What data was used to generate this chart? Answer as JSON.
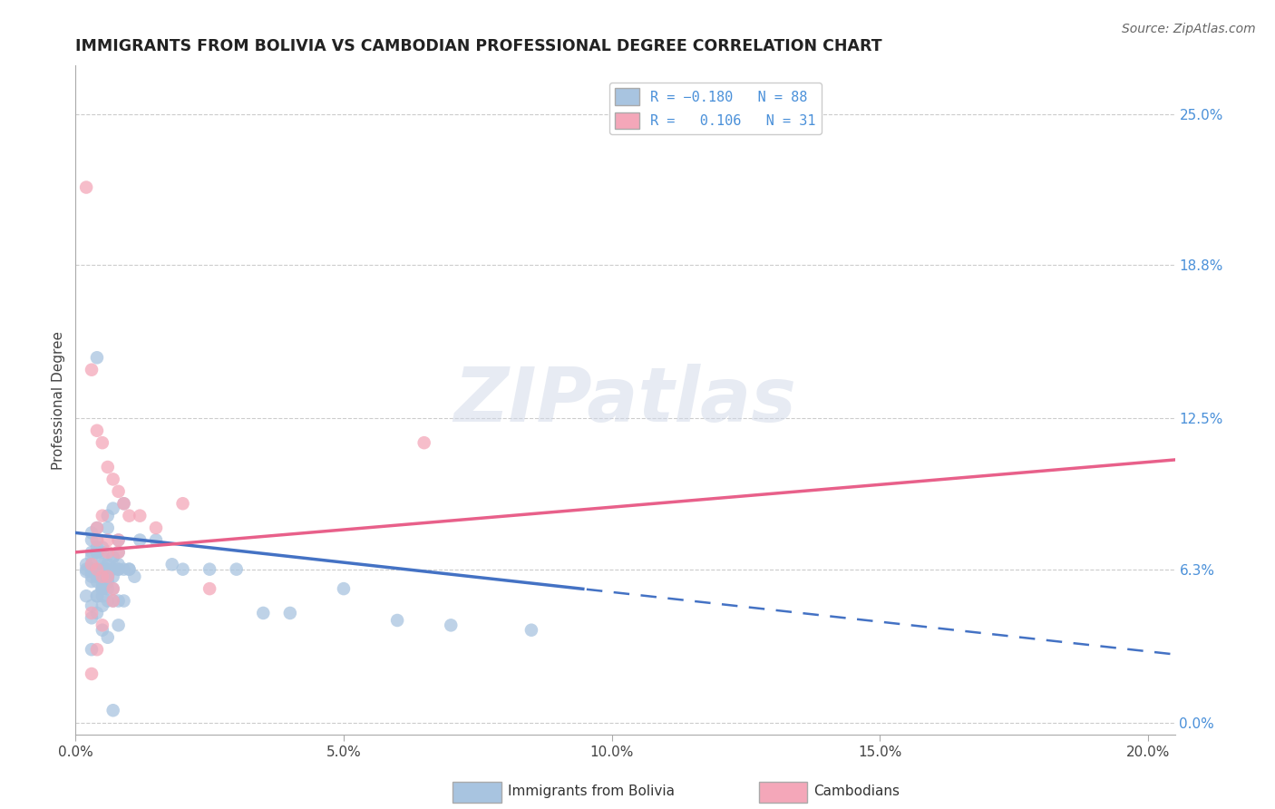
{
  "title": "IMMIGRANTS FROM BOLIVIA VS CAMBODIAN PROFESSIONAL DEGREE CORRELATION CHART",
  "source": "Source: ZipAtlas.com",
  "xlabel_ticks": [
    "0.0%",
    "5.0%",
    "10.0%",
    "15.0%",
    "20.0%"
  ],
  "xlabel_tick_vals": [
    0.0,
    5.0,
    10.0,
    15.0,
    20.0
  ],
  "ylabel": "Professional Degree",
  "ylabel_ticks": [
    "0.0%",
    "6.3%",
    "12.5%",
    "18.8%",
    "25.0%"
  ],
  "ylabel_tick_vals": [
    0.0,
    6.3,
    12.5,
    18.8,
    25.0
  ],
  "xmin": 0.0,
  "xmax": 20.5,
  "ymin": -0.5,
  "ymax": 27.0,
  "bolivia_color": "#a8c4e0",
  "cambodia_color": "#f4a7b9",
  "bolivia_R": -0.18,
  "bolivia_N": 88,
  "cambodia_R": 0.106,
  "cambodia_N": 31,
  "watermark": "ZIPatlas",
  "grid_color": "#cccccc",
  "axis_label_color": "#4a90d9",
  "bolivia_line_start_y": 7.8,
  "bolivia_line_end_y": 2.8,
  "bolivia_line_solid_end_x": 9.5,
  "cambodia_line_start_y": 7.0,
  "cambodia_line_end_y": 10.8,
  "bolivia_scatter_x": [
    0.3,
    0.4,
    0.5,
    0.6,
    0.7,
    0.8,
    0.9,
    1.0,
    0.2,
    0.4,
    1.1,
    0.5,
    0.6,
    0.3,
    0.8,
    0.4,
    0.6,
    0.9,
    0.7,
    0.5,
    0.3,
    0.2,
    0.4,
    0.5,
    0.7,
    0.3,
    1.2,
    0.6,
    0.8,
    0.4,
    0.5,
    0.3,
    0.6,
    0.4,
    0.7,
    0.2,
    0.9,
    0.5,
    0.4,
    0.3,
    0.8,
    1.0,
    0.6,
    0.5,
    0.4,
    0.7,
    0.3,
    0.2,
    0.6,
    0.5,
    1.5,
    0.4,
    0.8,
    0.3,
    0.6,
    0.5,
    2.0,
    0.4,
    0.7,
    0.6,
    0.3,
    2.5,
    0.5,
    0.4,
    0.8,
    1.8,
    0.6,
    0.3,
    0.5,
    0.4,
    3.0,
    0.7,
    0.6,
    0.5,
    5.0,
    0.4,
    0.8,
    0.3,
    4.0,
    6.0,
    7.0,
    0.5,
    0.6,
    0.4,
    8.5,
    3.5,
    0.3,
    0.7
  ],
  "bolivia_scatter_y": [
    7.5,
    7.0,
    6.5,
    6.3,
    6.3,
    6.3,
    6.3,
    6.3,
    6.3,
    6.3,
    6.0,
    5.5,
    5.0,
    7.8,
    7.5,
    8.0,
    8.5,
    9.0,
    8.8,
    7.2,
    6.8,
    6.5,
    6.0,
    5.5,
    5.0,
    7.0,
    7.5,
    8.0,
    6.3,
    6.3,
    6.3,
    6.3,
    6.3,
    5.8,
    5.5,
    5.2,
    5.0,
    4.8,
    4.5,
    4.3,
    4.0,
    6.3,
    6.3,
    7.0,
    7.5,
    6.8,
    6.5,
    6.2,
    6.0,
    5.8,
    7.5,
    7.0,
    6.5,
    6.0,
    5.5,
    5.2,
    6.3,
    7.0,
    6.8,
    6.5,
    6.2,
    6.3,
    6.8,
    7.2,
    7.0,
    6.5,
    6.0,
    5.8,
    5.5,
    5.2,
    6.3,
    6.0,
    5.8,
    5.5,
    5.5,
    5.2,
    5.0,
    4.8,
    4.5,
    4.2,
    4.0,
    3.8,
    3.5,
    15.0,
    3.8,
    4.5,
    3.0,
    0.5
  ],
  "cambodia_scatter_x": [
    0.2,
    0.3,
    0.4,
    0.5,
    0.6,
    0.7,
    0.8,
    0.9,
    1.0,
    0.4,
    0.6,
    0.8,
    0.3,
    0.5,
    0.7,
    1.2,
    0.4,
    0.6,
    1.5,
    0.5,
    0.8,
    2.0,
    0.4,
    0.6,
    2.5,
    0.7,
    0.3,
    6.5,
    0.5,
    0.4,
    0.3
  ],
  "cambodia_scatter_y": [
    22.0,
    14.5,
    12.0,
    11.5,
    10.5,
    10.0,
    9.5,
    9.0,
    8.5,
    8.0,
    7.5,
    7.0,
    6.5,
    6.0,
    5.5,
    8.5,
    7.5,
    7.0,
    8.0,
    8.5,
    7.5,
    9.0,
    6.3,
    6.0,
    5.5,
    5.0,
    4.5,
    11.5,
    4.0,
    3.0,
    2.0
  ]
}
